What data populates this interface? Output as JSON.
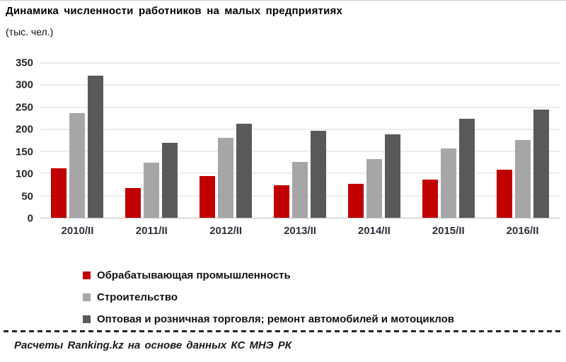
{
  "title": "Динамика численности работников на малых предприятиях",
  "subtitle": "(тыс. чел.)",
  "footer": "Расчеты Ranking.kz на основе данных КС МНЭ РК",
  "colors": {
    "series_manufacturing": "#C00000",
    "series_construction": "#A6A6A6",
    "series_trade": "#595959",
    "gridline": "#D9D9D9",
    "axis_line": "#BFBFBF"
  },
  "chart_data": {
    "type": "bar",
    "title": "Динамика численности работников на малых предприятиях",
    "units": "тыс. чел.",
    "categories": [
      "2010/II",
      "2011/II",
      "2012/II",
      "2013/II",
      "2014/II",
      "2015/II",
      "2016/II"
    ],
    "series": [
      {
        "name": "Обрабатывающая промышленность",
        "color": "#C00000",
        "values": [
          112,
          67,
          95,
          74,
          76,
          87,
          109
        ]
      },
      {
        "name": "Строительство",
        "color": "#A6A6A6",
        "values": [
          236,
          125,
          181,
          127,
          132,
          157,
          176
        ]
      },
      {
        "name": "Оптовая и розничная торговля; ремонт автомобилей и мотоциклов",
        "color": "#595959",
        "values": [
          322,
          169,
          212,
          197,
          189,
          223,
          245
        ]
      }
    ],
    "ylim": [
      0,
      350
    ],
    "yticks": [
      0,
      50,
      100,
      150,
      200,
      250,
      300,
      350
    ],
    "grid": "horizontal",
    "legend_position": "bottom-left"
  }
}
